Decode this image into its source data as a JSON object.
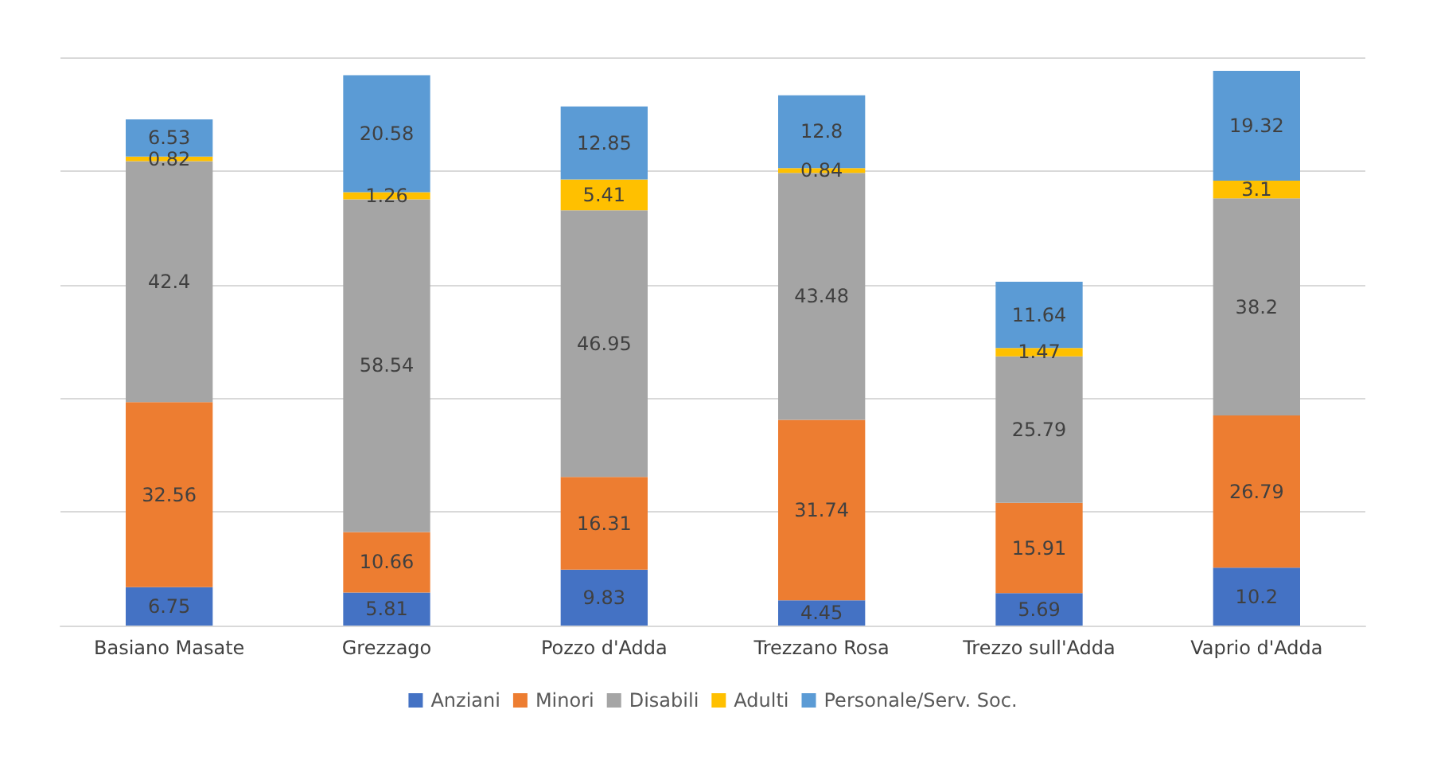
{
  "chart_data": {
    "type": "bar",
    "stacked": true,
    "data_labels": true,
    "grid": "y",
    "legend": "bottom",
    "tick_labels": "x",
    "categories": [
      "Basiano Masate",
      "Grezzago",
      "Pozzo d'Adda",
      "Trezzano Rosa",
      "Trezzo sull'Adda",
      "Vaprio d'Adda"
    ],
    "series": [
      {
        "name": "Anziani",
        "color": "#4472c4",
        "values": [
          6.75,
          5.81,
          9.83,
          4.45,
          5.69,
          10.2
        ]
      },
      {
        "name": "Minori",
        "color": "#ed7d31",
        "values": [
          32.56,
          10.66,
          16.31,
          31.74,
          15.91,
          26.79
        ]
      },
      {
        "name": "Disabili",
        "color": "#a5a5a5",
        "values": [
          42.4,
          58.54,
          46.95,
          43.48,
          25.79,
          38.2
        ]
      },
      {
        "name": "Adulti",
        "color": "#ffc000",
        "values": [
          0.82,
          1.26,
          5.41,
          0.84,
          1.47,
          3.1
        ]
      },
      {
        "name": "Personale/Serv. Soc.",
        "color": "#5b9bd5",
        "values": [
          6.53,
          20.58,
          12.85,
          12.8,
          11.64,
          19.32
        ]
      }
    ]
  }
}
